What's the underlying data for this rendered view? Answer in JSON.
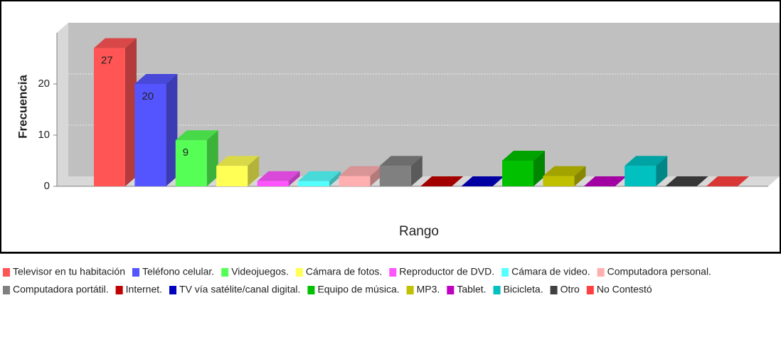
{
  "chart_data": {
    "type": "bar3d",
    "y_label": "Frecuencia",
    "x_label": "Rango",
    "categories": [
      null
    ],
    "ylim": [
      0,
      30
    ],
    "yticks": [
      0,
      10,
      20
    ],
    "grid": true,
    "legend": "bottom",
    "series": [
      {
        "name": "Televisor en tu habitación",
        "color": "#ff5555",
        "values": [
          27
        ],
        "value_labels": [
          "27"
        ]
      },
      {
        "name": "Teléfono celular.",
        "color": "#5555ff",
        "values": [
          20
        ],
        "value_labels": [
          "20"
        ]
      },
      {
        "name": "Videojuegos.",
        "color": "#55ff55",
        "values": [
          9
        ],
        "value_labels": [
          "9"
        ]
      },
      {
        "name": "Cámara de fotos.",
        "color": "#ffff55",
        "values": [
          4
        ]
      },
      {
        "name": "Reproductor de DVD.",
        "color": "#ff55ff",
        "values": [
          1
        ]
      },
      {
        "name": "Cámara de video.",
        "color": "#55ffff",
        "values": [
          1
        ]
      },
      {
        "name": "Computadora personal.",
        "color": "#ffafaf",
        "values": [
          2
        ]
      },
      {
        "name": "Computadora portátil.",
        "color": "#808080",
        "values": [
          4
        ]
      },
      {
        "name": "Internet.",
        "color": "#c00000",
        "values": [
          0
        ]
      },
      {
        "name": "TV vía satélite/canal digital.",
        "color": "#0000c0",
        "values": [
          0
        ]
      },
      {
        "name": "Equipo de música.",
        "color": "#00c000",
        "values": [
          5
        ]
      },
      {
        "name": "MP3.",
        "color": "#c0c000",
        "values": [
          2
        ]
      },
      {
        "name": "Tablet.",
        "color": "#c000c0",
        "values": [
          0
        ]
      },
      {
        "name": "Bicicleta.",
        "color": "#00c0c0",
        "values": [
          4
        ]
      },
      {
        "name": "Otro",
        "color": "#404040",
        "values": [
          0
        ]
      },
      {
        "name": "No Contestó",
        "color": "#ff4040",
        "values": [
          0
        ]
      }
    ]
  }
}
